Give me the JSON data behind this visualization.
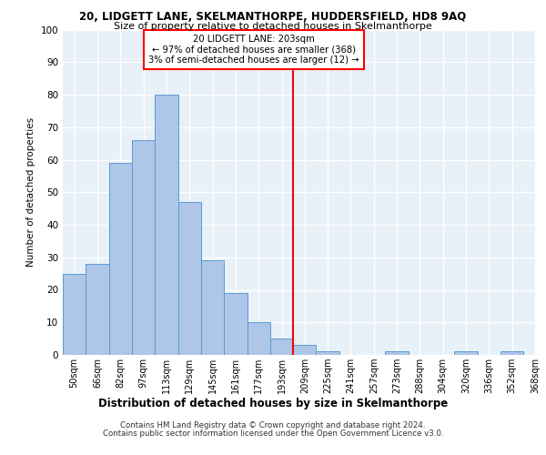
{
  "title1": "20, LIDGETT LANE, SKELMANTHORPE, HUDDERSFIELD, HD8 9AQ",
  "title2": "Size of property relative to detached houses in Skelmanthorpe",
  "xlabel": "Distribution of detached houses by size in Skelmanthorpe",
  "ylabel": "Number of detached properties",
  "annotation_line1": "20 LIDGETT LANE: 203sqm",
  "annotation_line2": "← 97% of detached houses are smaller (368)",
  "annotation_line3": "3% of semi-detached houses are larger (12) →",
  "footer1": "Contains HM Land Registry data © Crown copyright and database right 2024.",
  "footer2": "Contains public sector information licensed under the Open Government Licence v3.0.",
  "bin_labels": [
    "50sqm",
    "66sqm",
    "82sqm",
    "97sqm",
    "113sqm",
    "129sqm",
    "145sqm",
    "161sqm",
    "177sqm",
    "193sqm",
    "209sqm",
    "225sqm",
    "241sqm",
    "257sqm",
    "273sqm",
    "288sqm",
    "304sqm",
    "320sqm",
    "336sqm",
    "352sqm",
    "368sqm"
  ],
  "bar_values": [
    25,
    28,
    59,
    66,
    80,
    47,
    29,
    19,
    10,
    5,
    3,
    1,
    0,
    0,
    1,
    0,
    0,
    1,
    0,
    1
  ],
  "bar_color": "#aec6e8",
  "bar_edge_color": "#5b9bd5",
  "vline_x": 9.5,
  "vline_color": "red",
  "background_color": "#e8f0f8",
  "grid_color": "white",
  "ylim": [
    0,
    100
  ],
  "yticks": [
    0,
    10,
    20,
    30,
    40,
    50,
    60,
    70,
    80,
    90,
    100
  ]
}
